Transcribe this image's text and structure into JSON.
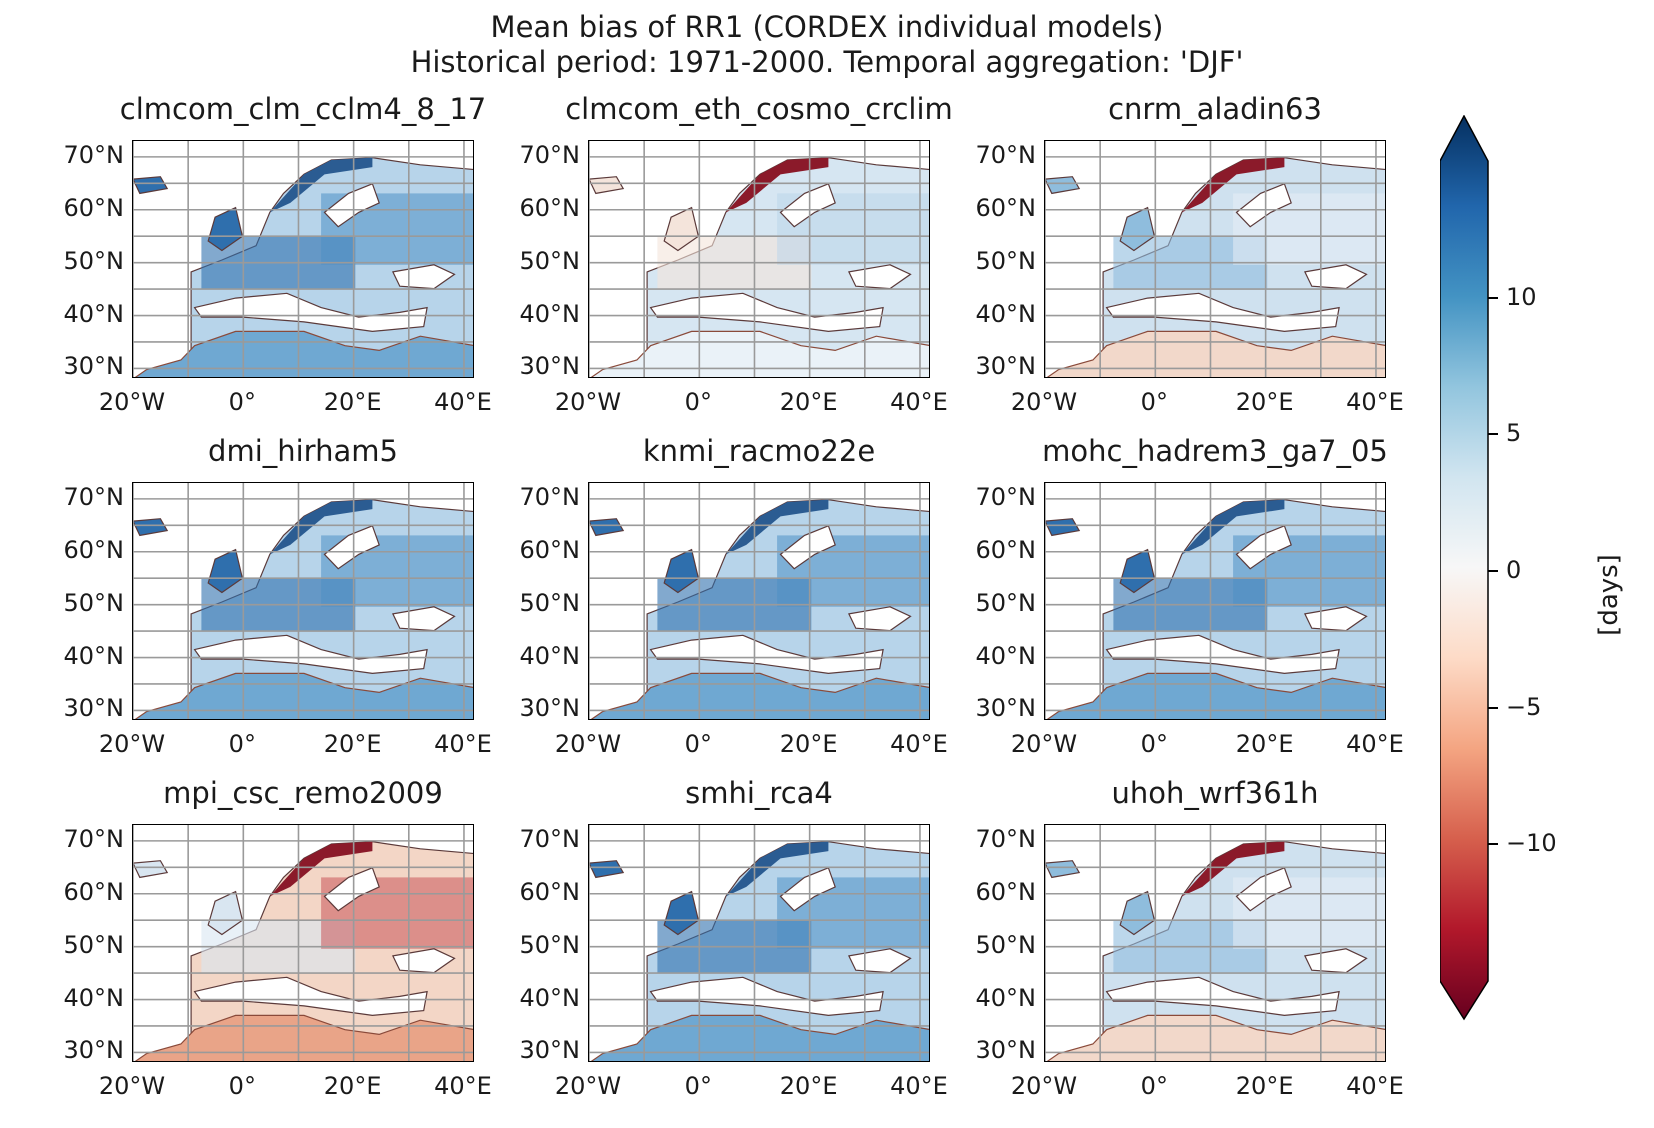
{
  "figure": {
    "title_line1": "Mean bias of RR1 (CORDEX individual models)",
    "title_line2": "Historical period: 1971-2000. Temporal aggregation: 'DJF'"
  },
  "axes": {
    "lat_ticks": [
      "70°N",
      "60°N",
      "50°N",
      "40°N",
      "30°N"
    ],
    "lon_ticks": [
      "20°W",
      "0°",
      "20°E",
      "40°E"
    ],
    "lat_range": [
      28,
      73
    ],
    "lon_range": [
      -20,
      42
    ]
  },
  "panels": [
    {
      "model": "clmcom_clm_cclm4_8_17",
      "tone": "blue"
    },
    {
      "model": "clmcom_eth_cosmo_crclim",
      "tone": "light-blue"
    },
    {
      "model": "cnrm_aladin63",
      "tone": "mixed"
    },
    {
      "model": "dmi_hirham5",
      "tone": "blue"
    },
    {
      "model": "knmi_racmo22e",
      "tone": "blue"
    },
    {
      "model": "mohc_hadrem3_ga7_05",
      "tone": "blue"
    },
    {
      "model": "mpi_csc_remo2009",
      "tone": "red"
    },
    {
      "model": "smhi_rca4",
      "tone": "blue"
    },
    {
      "model": "uhoh_wrf361h",
      "tone": "mixed"
    }
  ],
  "colorbar": {
    "label": "[days]",
    "ticks": [
      "10",
      "5",
      "0",
      "−5",
      "−10"
    ],
    "tick_values": [
      10,
      5,
      0,
      -5,
      -10
    ],
    "range": [
      -15,
      15
    ],
    "colormap": "RdBu",
    "colors": [
      "#67001f",
      "#b2182b",
      "#d6604d",
      "#f4a582",
      "#fddbc7",
      "#f7f7f7",
      "#d1e5f0",
      "#92c5de",
      "#4393c3",
      "#2166ac",
      "#053061"
    ]
  }
}
